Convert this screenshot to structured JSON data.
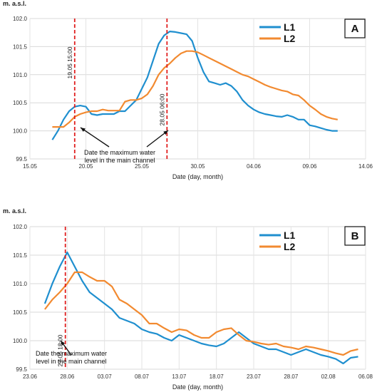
{
  "chart_data": [
    {
      "type": "line",
      "panel": "A",
      "ylabel": "m. a.s.l.",
      "xlabel": "Date (day, month)",
      "ylim": [
        99.5,
        102.0
      ],
      "yticks": [
        "99.5",
        "100.0",
        "100.5",
        "101.0",
        "101.5",
        "102.0"
      ],
      "x_unit": "days from 15.05",
      "xlim": [
        0,
        30
      ],
      "xtick_labels": [
        "15.05",
        "20.05",
        "25.05",
        "30.05",
        "04.06",
        "09.06",
        "14.06"
      ],
      "legend_position": "top-right",
      "series": [
        {
          "name": "L1",
          "color": "#1f8fcf",
          "x": [
            2.0,
            2.5,
            3.0,
            3.5,
            4.0,
            4.5,
            5.0,
            5.5,
            6.0,
            6.5,
            7.0,
            7.5,
            8.0,
            8.5,
            9.0,
            9.5,
            10.0,
            10.5,
            11.0,
            11.5,
            12.0,
            12.5,
            13.0,
            13.5,
            14.0,
            14.5,
            15.0,
            15.5,
            16.0,
            16.5,
            17.0,
            17.5,
            18.0,
            18.5,
            19.0,
            19.5,
            20.0,
            20.5,
            21.0,
            21.5,
            22.0,
            22.5,
            23.0,
            23.5,
            24.0,
            24.5,
            25.0,
            25.5,
            26.0,
            26.5,
            27.0,
            27.5
          ],
          "y": [
            99.84,
            100.0,
            100.2,
            100.35,
            100.43,
            100.45,
            100.43,
            100.3,
            100.28,
            100.3,
            100.3,
            100.3,
            100.35,
            100.35,
            100.45,
            100.55,
            100.75,
            100.95,
            101.25,
            101.55,
            101.7,
            101.77,
            101.76,
            101.74,
            101.72,
            101.6,
            101.3,
            101.05,
            100.88,
            100.85,
            100.82,
            100.85,
            100.8,
            100.7,
            100.55,
            100.45,
            100.38,
            100.33,
            100.3,
            100.28,
            100.26,
            100.25,
            100.28,
            100.25,
            100.2,
            100.2,
            100.1,
            100.08,
            100.05,
            100.02,
            100.0,
            100.0
          ]
        },
        {
          "name": "L2",
          "color": "#f28a30",
          "x": [
            2.0,
            2.5,
            3.0,
            3.5,
            4.0,
            4.5,
            5.0,
            5.5,
            6.0,
            6.5,
            7.0,
            7.5,
            8.0,
            8.5,
            9.0,
            9.5,
            10.0,
            10.5,
            11.0,
            11.5,
            12.0,
            12.5,
            13.0,
            13.5,
            14.0,
            14.5,
            15.0,
            15.5,
            16.0,
            16.5,
            17.0,
            17.5,
            18.0,
            18.5,
            19.0,
            19.5,
            20.0,
            20.5,
            21.0,
            21.5,
            22.0,
            22.5,
            23.0,
            23.5,
            24.0,
            24.5,
            25.0,
            25.5,
            26.0,
            26.5,
            27.0,
            27.5
          ],
          "y": [
            100.07,
            100.07,
            100.07,
            100.15,
            100.25,
            100.3,
            100.33,
            100.35,
            100.35,
            100.38,
            100.36,
            100.36,
            100.36,
            100.52,
            100.55,
            100.55,
            100.58,
            100.65,
            100.8,
            101.0,
            101.12,
            101.2,
            101.3,
            101.38,
            101.42,
            101.42,
            101.4,
            101.35,
            101.3,
            101.25,
            101.2,
            101.15,
            101.1,
            101.05,
            101.0,
            100.97,
            100.92,
            100.87,
            100.82,
            100.78,
            100.75,
            100.72,
            100.7,
            100.65,
            100.63,
            100.55,
            100.45,
            100.38,
            100.3,
            100.25,
            100.22,
            100.2
          ]
        }
      ],
      "markers": [
        {
          "x": 4.0,
          "label": "19.05 15:00"
        },
        {
          "x": 12.25,
          "label": "28.05 06:00"
        }
      ],
      "annotation_lines": [
        "Date the maximum water",
        "level in the main channel"
      ]
    },
    {
      "type": "line",
      "panel": "B",
      "ylabel": "m. a.s.l.",
      "xlabel": "Date (day, month)",
      "ylim": [
        99.5,
        102.0
      ],
      "yticks": [
        "99.5",
        "100.0",
        "100.5",
        "101.0",
        "101.5",
        "102.0"
      ],
      "x_unit": "days from 23.06",
      "xlim": [
        0,
        45
      ],
      "xtick_labels": [
        "23.06",
        "28.06",
        "03.07",
        "08.07",
        "13.07",
        "18.07",
        "23.07",
        "28.07",
        "02.08",
        "06.08"
      ],
      "legend_position": "top-right",
      "series": [
        {
          "name": "L1",
          "color": "#1f8fcf",
          "x": [
            2,
            3,
            4,
            5,
            6,
            7,
            8,
            9,
            10,
            11,
            12,
            13,
            14,
            15,
            16,
            17,
            18,
            19,
            20,
            21,
            22,
            23,
            24,
            25,
            26,
            27,
            28,
            29,
            30,
            31,
            32,
            33,
            34,
            35,
            36,
            37,
            38,
            39,
            40,
            41,
            42,
            43,
            44
          ],
          "y": [
            100.65,
            101.0,
            101.3,
            101.55,
            101.3,
            101.05,
            100.85,
            100.75,
            100.65,
            100.55,
            100.4,
            100.35,
            100.3,
            100.2,
            100.15,
            100.12,
            100.05,
            100.0,
            100.1,
            100.05,
            100.0,
            99.95,
            99.92,
            99.9,
            99.95,
            100.05,
            100.15,
            100.05,
            99.95,
            99.9,
            99.85,
            99.85,
            99.8,
            99.75,
            99.8,
            99.85,
            99.8,
            99.75,
            99.72,
            99.68,
            99.6,
            99.7,
            99.72
          ]
        },
        {
          "name": "L2",
          "color": "#f28a30",
          "x": [
            2,
            3,
            4,
            5,
            6,
            7,
            8,
            9,
            10,
            11,
            12,
            13,
            14,
            15,
            16,
            17,
            18,
            19,
            20,
            21,
            22,
            23,
            24,
            25,
            26,
            27,
            28,
            29,
            30,
            31,
            32,
            33,
            34,
            35,
            36,
            37,
            38,
            39,
            40,
            41,
            42,
            43,
            44
          ],
          "y": [
            100.55,
            100.72,
            100.85,
            101.0,
            101.2,
            101.2,
            101.12,
            101.05,
            101.05,
            100.95,
            100.72,
            100.65,
            100.55,
            100.45,
            100.3,
            100.3,
            100.22,
            100.15,
            100.2,
            100.18,
            100.1,
            100.05,
            100.05,
            100.15,
            100.2,
            100.22,
            100.1,
            100.0,
            99.98,
            99.95,
            99.93,
            99.95,
            99.9,
            99.88,
            99.85,
            99.9,
            99.88,
            99.85,
            99.82,
            99.78,
            99.75,
            99.82,
            99.85
          ]
        }
      ],
      "markers": [
        {
          "x": 4.75,
          "label": "27.06 18:00"
        }
      ],
      "annotation_lines": [
        "Date the maximum water",
        "level in the main channel"
      ]
    }
  ]
}
